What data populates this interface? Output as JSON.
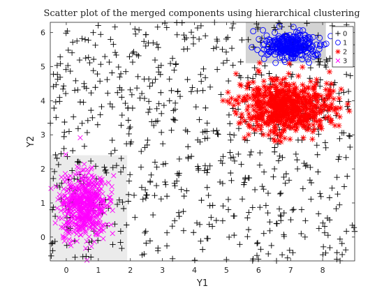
{
  "chart_data": {
    "type": "scatter",
    "title": "Scatter plot of the merged components using hierarchical clustering",
    "xlabel": "Y1",
    "ylabel": "Y2",
    "xlim": [
      -0.5,
      9.0
    ],
    "ylim": [
      -0.7,
      6.3
    ],
    "xticks": [
      0,
      1,
      2,
      3,
      4,
      5,
      6,
      7,
      8
    ],
    "yticks": [
      0,
      1,
      2,
      3,
      4,
      5,
      6
    ],
    "grid": false,
    "legend_position": "top-right",
    "shaded_regions": [
      {
        "x": [
          5.6,
          8.1
        ],
        "y": [
          5.1,
          6.3
        ],
        "color": "#d3d3d3"
      },
      {
        "x": [
          -0.5,
          1.9
        ],
        "y": [
          -0.7,
          2.4
        ],
        "color": "#ebebeb"
      }
    ],
    "series": [
      {
        "name": "0",
        "marker": "plus",
        "color": "#000000",
        "distribution": "uniform",
        "x_range": [
          -0.5,
          9.0
        ],
        "y_range": [
          -0.7,
          6.3
        ],
        "count": 700
      },
      {
        "name": "1",
        "marker": "circle",
        "color": "#0000ff",
        "distribution": "cluster",
        "center": [
          7.0,
          5.6
        ],
        "spread": [
          0.45,
          0.2
        ],
        "count": 280
      },
      {
        "name": "2",
        "marker": "asterisk",
        "color": "#ff0000",
        "distribution": "cluster",
        "center": [
          6.9,
          3.8
        ],
        "spread": [
          0.75,
          0.4
        ],
        "count": 650
      },
      {
        "name": "3",
        "marker": "x",
        "color": "#ff00ff",
        "distribution": "cluster",
        "center": [
          0.55,
          0.95
        ],
        "spread": [
          0.35,
          0.48
        ],
        "count": 550
      }
    ]
  }
}
